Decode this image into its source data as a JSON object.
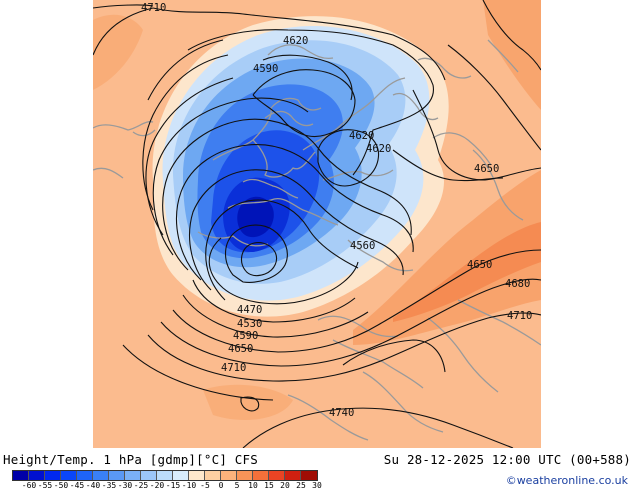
{
  "map": {
    "contour_labels": [
      "4710",
      "4620",
      "4590",
      "4620",
      "4620",
      "4650",
      "4560",
      "4650",
      "4680",
      "4710",
      "4470",
      "4530",
      "4590",
      "4650",
      "4710",
      "4740"
    ]
  },
  "footer": {
    "title": "Height/Temp. 1 hPa [gdmp][°C] CFS",
    "datetime": "Su 28-12-2025 12:00 UTC (00+588)",
    "credit": "©weatheronline.co.uk"
  },
  "legend": {
    "labels": [
      "-60",
      "-55",
      "-50",
      "-45",
      "-40",
      "-35",
      "-30",
      "-25",
      "-20",
      "-15",
      "-10",
      "-5",
      "0",
      "5",
      "10",
      "15",
      "20",
      "25",
      "30"
    ],
    "colors": [
      "#0000a8",
      "#0010d0",
      "#0028f0",
      "#0a46f8",
      "#1e64f8",
      "#3a80f5",
      "#5a98f5",
      "#7ab0f7",
      "#9cc6f8",
      "#bcdcfa",
      "#d8ecfc",
      "#ffe8cc",
      "#fdcfa2",
      "#fbb27c",
      "#f89458",
      "#f4703a",
      "#ea4424",
      "#d02010",
      "#a00c04"
    ]
  }
}
